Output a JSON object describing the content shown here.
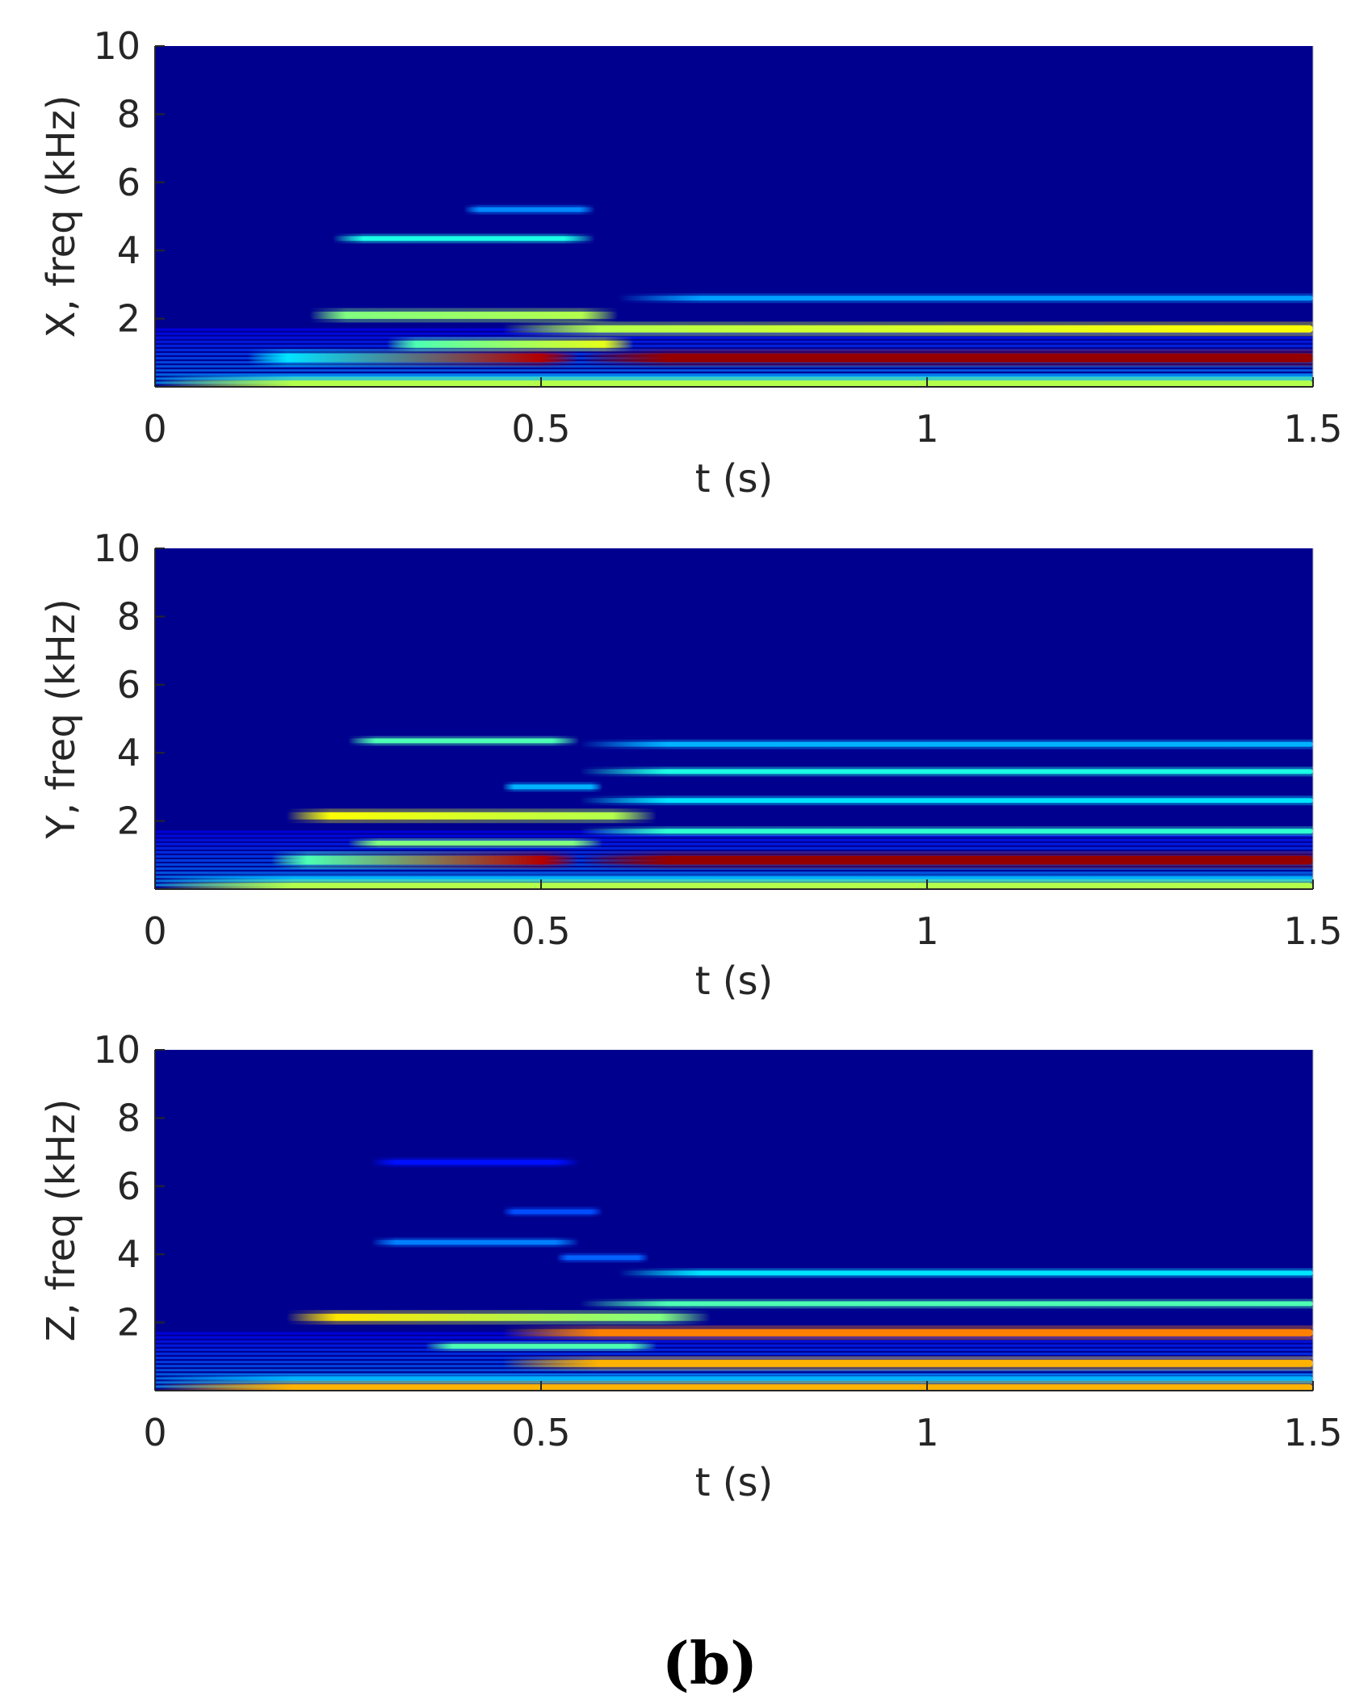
{
  "figure_label": "(b)",
  "chart_data": [
    {
      "type": "heatmap",
      "panel": "X",
      "title": "",
      "xlabel": "t (s)",
      "ylabel": "X, freq (kHz)",
      "xlim": [
        0,
        1.5
      ],
      "ylim": [
        0,
        10
      ],
      "xticks": [
        0,
        0.5,
        1,
        1.5
      ],
      "xtick_labels": [
        "0",
        "0.5",
        "1",
        "1.5"
      ],
      "yticks": [
        2,
        4,
        6,
        8,
        10
      ],
      "ytick_labels": [
        "2",
        "4",
        "6",
        "8",
        "10"
      ],
      "colormap": "jet",
      "background_color": "#00008f",
      "grid": false,
      "bands": [
        {
          "f": 0.85,
          "t0": 0.12,
          "t1": 0.55,
          "i0": 0.35,
          "i1": 0.95
        },
        {
          "f": 0.85,
          "t0": 0.55,
          "t1": 1.5,
          "i0": 0.98,
          "i1": 0.98
        },
        {
          "f": 1.25,
          "t0": 0.3,
          "t1": 0.62,
          "i0": 0.45,
          "i1": 0.6
        },
        {
          "f": 1.7,
          "t0": 0.45,
          "t1": 1.5,
          "i0": 0.55,
          "i1": 0.62
        },
        {
          "f": 2.1,
          "t0": 0.2,
          "t1": 0.6,
          "i0": 0.5,
          "i1": 0.55
        },
        {
          "f": 2.6,
          "t0": 0.6,
          "t1": 1.5,
          "i0": 0.28,
          "i1": 0.28
        },
        {
          "f": 4.35,
          "t0": 0.23,
          "t1": 0.57,
          "i0": 0.4,
          "i1": 0.4
        },
        {
          "f": 5.2,
          "t0": 0.4,
          "t1": 0.57,
          "i0": 0.26,
          "i1": 0.26
        },
        {
          "f": 0.25,
          "t0": 0.0,
          "t1": 1.5,
          "i0": 0.3,
          "i1": 0.3
        },
        {
          "f": 0.08,
          "t0": 0.0,
          "t1": 1.5,
          "i0": 0.55,
          "i1": 0.55
        }
      ]
    },
    {
      "type": "heatmap",
      "panel": "Y",
      "title": "",
      "xlabel": "t (s)",
      "ylabel": "Y, freq (kHz)",
      "xlim": [
        0,
        1.5
      ],
      "ylim": [
        0,
        10
      ],
      "xticks": [
        0,
        0.5,
        1,
        1.5
      ],
      "xtick_labels": [
        "0",
        "0.5",
        "1",
        "1.5"
      ],
      "yticks": [
        2,
        4,
        6,
        8,
        10
      ],
      "ytick_labels": [
        "2",
        "4",
        "6",
        "8",
        "10"
      ],
      "colormap": "jet",
      "background_color": "#00008f",
      "grid": false,
      "bands": [
        {
          "f": 0.85,
          "t0": 0.15,
          "t1": 0.55,
          "i0": 0.45,
          "i1": 0.95
        },
        {
          "f": 0.85,
          "t0": 0.55,
          "t1": 1.5,
          "i0": 0.98,
          "i1": 0.98
        },
        {
          "f": 1.35,
          "t0": 0.25,
          "t1": 0.58,
          "i0": 0.5,
          "i1": 0.5
        },
        {
          "f": 1.7,
          "t0": 0.55,
          "t1": 1.5,
          "i0": 0.42,
          "i1": 0.42
        },
        {
          "f": 2.15,
          "t0": 0.17,
          "t1": 0.65,
          "i0": 0.62,
          "i1": 0.55
        },
        {
          "f": 2.6,
          "t0": 0.55,
          "t1": 1.5,
          "i0": 0.35,
          "i1": 0.35
        },
        {
          "f": 3.0,
          "t0": 0.45,
          "t1": 0.58,
          "i0": 0.3,
          "i1": 0.3
        },
        {
          "f": 3.45,
          "t0": 0.55,
          "t1": 1.5,
          "i0": 0.4,
          "i1": 0.4
        },
        {
          "f": 4.35,
          "t0": 0.25,
          "t1": 0.55,
          "i0": 0.45,
          "i1": 0.45
        },
        {
          "f": 4.25,
          "t0": 0.55,
          "t1": 1.5,
          "i0": 0.3,
          "i1": 0.3
        },
        {
          "f": 0.3,
          "t0": 0.0,
          "t1": 1.5,
          "i0": 0.3,
          "i1": 0.3
        },
        {
          "f": 0.08,
          "t0": 0.0,
          "t1": 1.5,
          "i0": 0.55,
          "i1": 0.55
        }
      ]
    },
    {
      "type": "heatmap",
      "panel": "Z",
      "title": "",
      "xlabel": "t (s)",
      "ylabel": "Z, freq (kHz)",
      "xlim": [
        0,
        1.5
      ],
      "ylim": [
        0,
        10
      ],
      "xticks": [
        0,
        0.5,
        1,
        1.5
      ],
      "xtick_labels": [
        "0",
        "0.5",
        "1",
        "1.5"
      ],
      "yticks": [
        2,
        4,
        6,
        8,
        10
      ],
      "ytick_labels": [
        "2",
        "4",
        "6",
        "8",
        "10"
      ],
      "colormap": "jet",
      "background_color": "#00008f",
      "grid": false,
      "bands": [
        {
          "f": 0.8,
          "t0": 0.45,
          "t1": 1.5,
          "i0": 0.7,
          "i1": 0.7
        },
        {
          "f": 1.3,
          "t0": 0.35,
          "t1": 0.65,
          "i0": 0.45,
          "i1": 0.45
        },
        {
          "f": 1.7,
          "t0": 0.45,
          "t1": 1.5,
          "i0": 0.75,
          "i1": 0.75
        },
        {
          "f": 2.15,
          "t0": 0.17,
          "t1": 0.72,
          "i0": 0.65,
          "i1": 0.5
        },
        {
          "f": 2.55,
          "t0": 0.55,
          "t1": 1.5,
          "i0": 0.45,
          "i1": 0.45
        },
        {
          "f": 3.45,
          "t0": 0.6,
          "t1": 1.5,
          "i0": 0.35,
          "i1": 0.35
        },
        {
          "f": 3.9,
          "t0": 0.52,
          "t1": 0.64,
          "i0": 0.22,
          "i1": 0.22
        },
        {
          "f": 4.35,
          "t0": 0.28,
          "t1": 0.55,
          "i0": 0.25,
          "i1": 0.25
        },
        {
          "f": 5.25,
          "t0": 0.45,
          "t1": 0.58,
          "i0": 0.2,
          "i1": 0.2
        },
        {
          "f": 6.7,
          "t0": 0.28,
          "t1": 0.55,
          "i0": 0.14,
          "i1": 0.14
        },
        {
          "f": 0.35,
          "t0": 0.0,
          "t1": 1.5,
          "i0": 0.3,
          "i1": 0.3
        },
        {
          "f": 0.08,
          "t0": 0.0,
          "t1": 1.5,
          "i0": 0.7,
          "i1": 0.7
        }
      ]
    }
  ]
}
